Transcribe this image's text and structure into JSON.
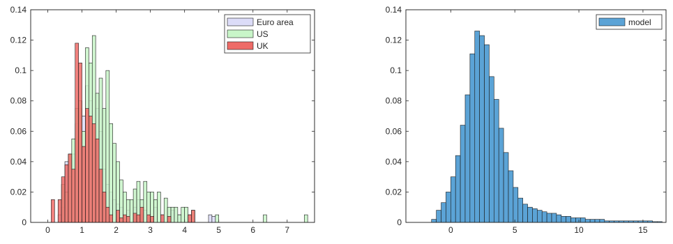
{
  "chart_data": [
    {
      "type": "bar",
      "xlim": [
        -0.5,
        7.8
      ],
      "ylim": [
        0,
        0.14
      ],
      "xticks": [
        0,
        1,
        2,
        3,
        4,
        5,
        6,
        7
      ],
      "yticks": [
        0,
        0.02,
        0.04,
        0.06,
        0.08,
        0.1,
        0.12,
        0.14
      ],
      "grid": false,
      "legend": {
        "placement": "top-right"
      },
      "series": [
        {
          "name": "Euro area",
          "color": "#dcdcf8",
          "bin_width": 0.1,
          "bins": [
            [
              0.35,
              0.005
            ],
            [
              0.45,
              0.01
            ],
            [
              0.55,
              0.04
            ],
            [
              0.65,
              0.03
            ],
            [
              0.75,
              0.045
            ],
            [
              0.85,
              0.065
            ],
            [
              0.95,
              0.075
            ],
            [
              1.05,
              0.07
            ],
            [
              1.15,
              0.09
            ],
            [
              1.25,
              0.08
            ],
            [
              1.35,
              0.055
            ],
            [
              1.45,
              0.075
            ],
            [
              1.55,
              0.06
            ],
            [
              1.65,
              0.035
            ],
            [
              1.75,
              0.025
            ],
            [
              1.85,
              0.02
            ],
            [
              1.95,
              0.015
            ],
            [
              2.05,
              0.012
            ],
            [
              2.15,
              0.01
            ],
            [
              2.35,
              0.008
            ],
            [
              2.55,
              0.01
            ],
            [
              2.65,
              0.015
            ],
            [
              2.75,
              0.005
            ],
            [
              2.85,
              0.008
            ],
            [
              2.95,
              0.005
            ],
            [
              3.15,
              0.01
            ],
            [
              3.35,
              0.005
            ],
            [
              3.65,
              0.008
            ],
            [
              3.85,
              0.005
            ],
            [
              4.15,
              0.005
            ],
            [
              4.75,
              0.005
            ],
            [
              4.85,
              0.004
            ]
          ]
        },
        {
          "name": "US",
          "color": "#c8f5c8",
          "bin_width": 0.1,
          "bins": [
            [
              0.45,
              0.025
            ],
            [
              0.55,
              0.02
            ],
            [
              0.65,
              0.045
            ],
            [
              0.75,
              0.055
            ],
            [
              0.85,
              0.075
            ],
            [
              0.95,
              0.08
            ],
            [
              1.05,
              0.06
            ],
            [
              1.15,
              0.115
            ],
            [
              1.25,
              0.105
            ],
            [
              1.35,
              0.123
            ],
            [
              1.45,
              0.085
            ],
            [
              1.55,
              0.095
            ],
            [
              1.65,
              0.075
            ],
            [
              1.75,
              0.1
            ],
            [
              1.85,
              0.065
            ],
            [
              1.95,
              0.052
            ],
            [
              2.05,
              0.04
            ],
            [
              2.15,
              0.028
            ],
            [
              2.25,
              0.02
            ],
            [
              2.35,
              0.015
            ],
            [
              2.45,
              0.015
            ],
            [
              2.55,
              0.022
            ],
            [
              2.65,
              0.027
            ],
            [
              2.75,
              0.015
            ],
            [
              2.85,
              0.027
            ],
            [
              2.95,
              0.02
            ],
            [
              3.05,
              0.02
            ],
            [
              3.15,
              0.015
            ],
            [
              3.25,
              0.02
            ],
            [
              3.45,
              0.016
            ],
            [
              3.55,
              0.01
            ],
            [
              3.65,
              0.01
            ],
            [
              3.75,
              0.01
            ],
            [
              3.85,
              0.005
            ],
            [
              3.95,
              0.01
            ],
            [
              4.05,
              0.01
            ],
            [
              4.25,
              0.008
            ],
            [
              4.95,
              0.005
            ],
            [
              6.35,
              0.005
            ],
            [
              7.55,
              0.005
            ]
          ]
        },
        {
          "name": "UK",
          "color": "#ee6b67",
          "bin_width": 0.1,
          "bins": [
            [
              0.15,
              0.015
            ],
            [
              0.35,
              0.015
            ],
            [
              0.45,
              0.03
            ],
            [
              0.55,
              0.038
            ],
            [
              0.65,
              0.045
            ],
            [
              0.75,
              0.035
            ],
            [
              0.85,
              0.118
            ],
            [
              0.95,
              0.105
            ],
            [
              1.05,
              0.05
            ],
            [
              1.15,
              0.075
            ],
            [
              1.25,
              0.07
            ],
            [
              1.35,
              0.065
            ],
            [
              1.45,
              0.055
            ],
            [
              1.55,
              0.035
            ],
            [
              1.65,
              0.02
            ],
            [
              1.75,
              0.01
            ],
            [
              1.85,
              0.005
            ],
            [
              2.05,
              0.008
            ],
            [
              2.15,
              0.003
            ],
            [
              2.25,
              0.005
            ],
            [
              2.35,
              0.004
            ],
            [
              2.55,
              0.006
            ],
            [
              2.65,
              0.005
            ],
            [
              2.75,
              0.01
            ],
            [
              2.95,
              0.005
            ],
            [
              3.05,
              0.004
            ],
            [
              3.35,
              0.005
            ],
            [
              3.55,
              0.004
            ],
            [
              4.15,
              0.005
            ],
            [
              4.25,
              0.008
            ]
          ]
        }
      ]
    },
    {
      "type": "bar",
      "xlim": [
        -3.5,
        16.8
      ],
      "ylim": [
        0,
        0.14
      ],
      "xticks": [
        0,
        5,
        10,
        15
      ],
      "yticks": [
        0,
        0.02,
        0.04,
        0.06,
        0.08,
        0.1,
        0.12,
        0.14
      ],
      "grid": false,
      "legend": {
        "placement": "top-right"
      },
      "series": [
        {
          "name": "model",
          "color": "#5ba3d6",
          "bin_edges_start": -1.5,
          "bin_width": 0.375,
          "values": [
            0.002,
            0.008,
            0.013,
            0.02,
            0.03,
            0.044,
            0.064,
            0.084,
            0.111,
            0.126,
            0.123,
            0.117,
            0.096,
            0.081,
            0.062,
            0.046,
            0.034,
            0.023,
            0.016,
            0.012,
            0.01,
            0.009,
            0.008,
            0.007,
            0.006,
            0.006,
            0.005,
            0.004,
            0.004,
            0.003,
            0.003,
            0.003,
            0.002,
            0.002,
            0.002,
            0.002,
            0.001,
            0.001,
            0.001,
            0.001,
            0.001,
            0.001,
            0.001,
            0.001,
            0.001,
            0.001,
            0.0005,
            0.0005
          ]
        }
      ]
    }
  ]
}
